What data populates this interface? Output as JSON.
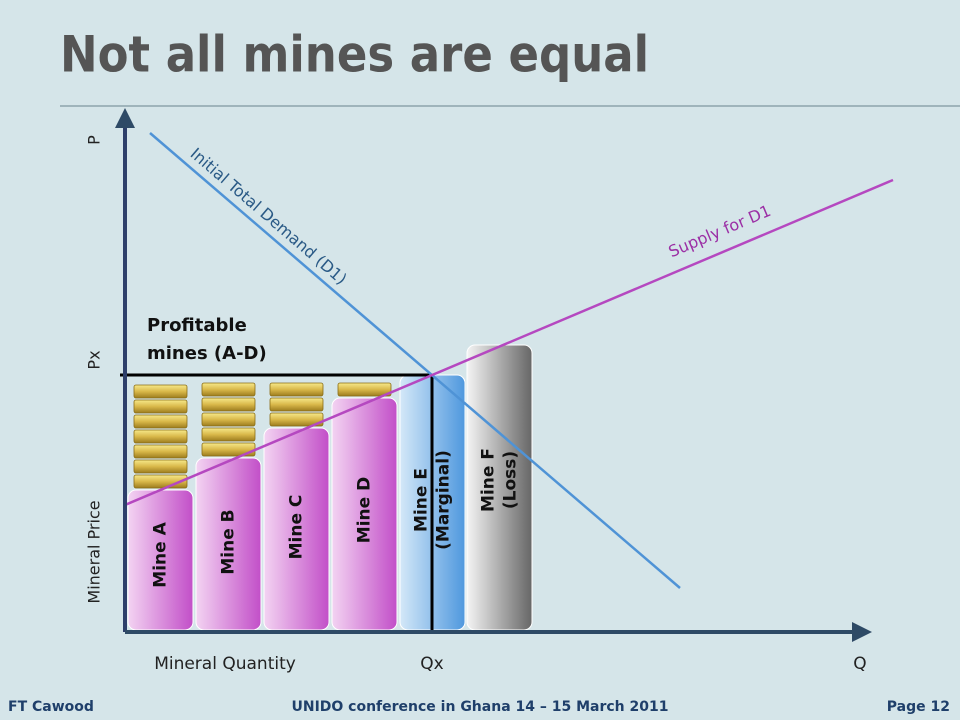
{
  "title": "Not all mines are equal",
  "axes": {
    "y_top": "P",
    "y_mid": "Px",
    "y_label": "Mineral Price",
    "x_label": "Mineral Quantity",
    "x_mid": "Qx",
    "x_end": "Q"
  },
  "lines": {
    "demand": "Initial Total Demand (D1)",
    "supply": "Supply for D1"
  },
  "annotation": [
    "Profitable",
    "mines (A-D)"
  ],
  "mines": [
    {
      "lines": [
        "Mine  A"
      ]
    },
    {
      "lines": [
        "Mine  B"
      ]
    },
    {
      "lines": [
        "Mine  C"
      ]
    },
    {
      "lines": [
        "Mine  D"
      ]
    },
    {
      "lines": [
        "Mine E",
        "(Marginal)"
      ]
    },
    {
      "lines": [
        "Mine  F",
        "(Loss)"
      ]
    }
  ],
  "footer": {
    "left": "FT Cawood",
    "center": "UNIDO conference in Ghana 14 – 15 March 2011",
    "right": "Page 12"
  }
}
